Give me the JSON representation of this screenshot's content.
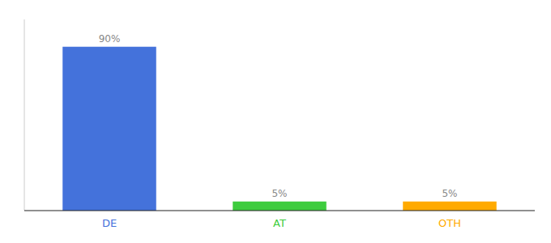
{
  "chart_data": {
    "type": "bar",
    "categories": [
      "DE",
      "AT",
      "OTH"
    ],
    "values": [
      90,
      5,
      5
    ],
    "value_labels": [
      "90%",
      "5%",
      "5%"
    ],
    "colors": [
      "#4472db",
      "#3ecc3e",
      "#ffaa00"
    ],
    "ylim": [
      0,
      105
    ],
    "data_labels": true,
    "tick_labels": "x"
  }
}
